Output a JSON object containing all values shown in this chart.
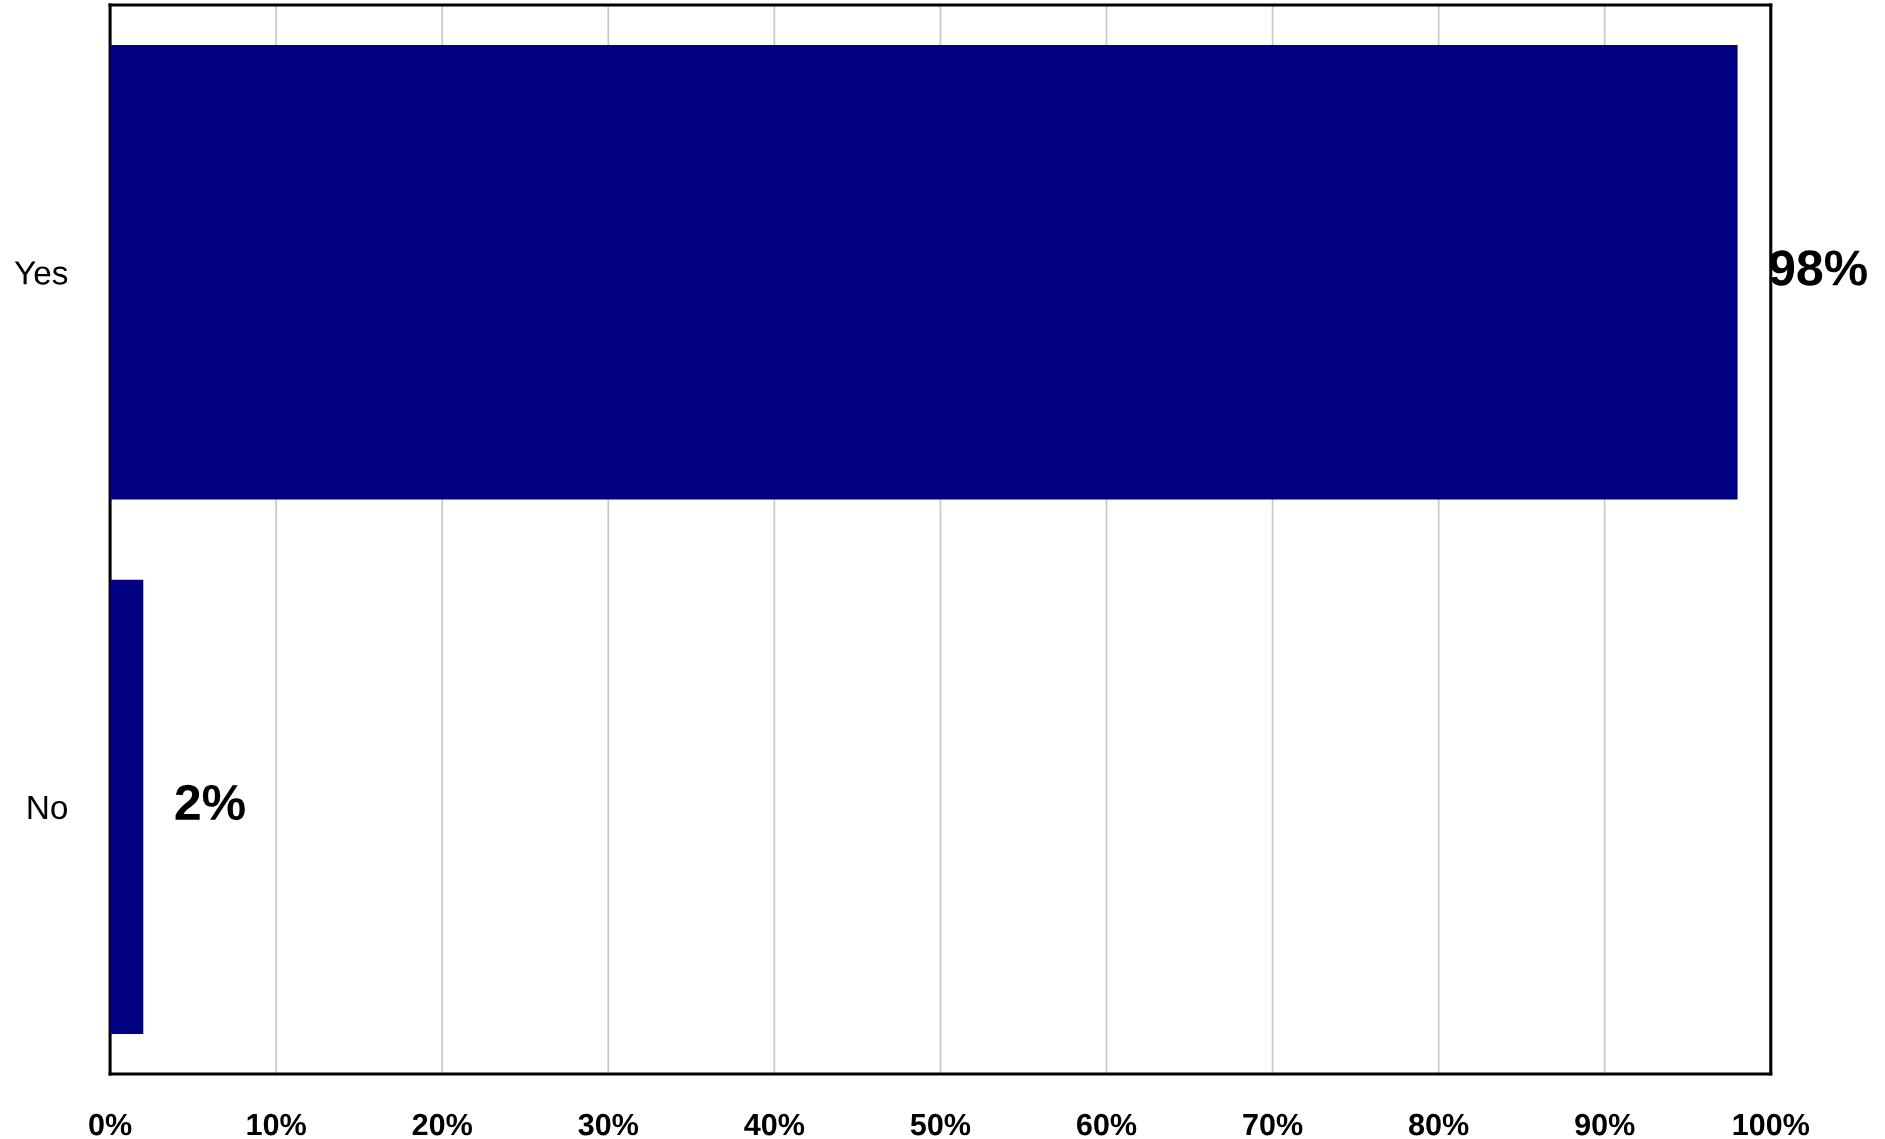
{
  "chart_data": {
    "type": "bar",
    "orientation": "horizontal",
    "categories": [
      "Yes",
      "No"
    ],
    "values": [
      98,
      2
    ],
    "color": "#000080",
    "value_labels": [
      "98%",
      "2%"
    ],
    "xlim": [
      0,
      100
    ],
    "xticks": [
      {
        "value": 0,
        "label": "0%"
      },
      {
        "value": 10,
        "label": "10%"
      },
      {
        "value": 20,
        "label": "20%"
      },
      {
        "value": 30,
        "label": "30%"
      },
      {
        "value": 40,
        "label": "40%"
      },
      {
        "value": 50,
        "label": "50%"
      },
      {
        "value": 60,
        "label": "60%"
      },
      {
        "value": 70,
        "label": "70%"
      },
      {
        "value": 80,
        "label": "80%"
      },
      {
        "value": 90,
        "label": "90%"
      },
      {
        "value": 100,
        "label": "100%"
      }
    ],
    "grid": "x"
  }
}
